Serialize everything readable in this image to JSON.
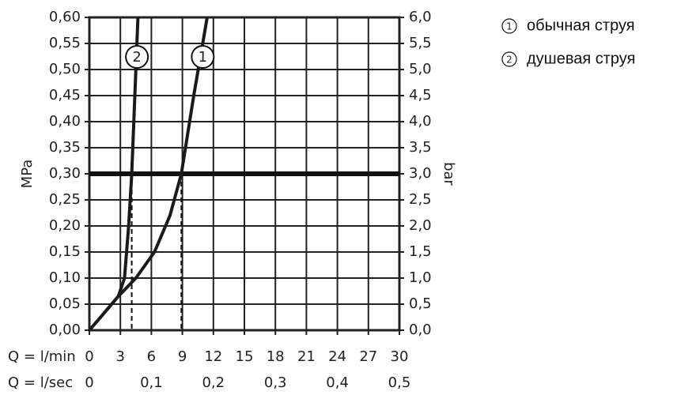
{
  "chart_data": {
    "type": "line",
    "x_label": "Q = l/min",
    "x2_label": "Q = l/sec",
    "y_label": "MPa",
    "y2_label": "bar",
    "xlim": [
      0,
      30
    ],
    "xticks": [
      0,
      3,
      6,
      9,
      12,
      15,
      18,
      21,
      24,
      27,
      30
    ],
    "x2lim": [
      0,
      0.5
    ],
    "x2ticks": [
      0,
      {
        "value": 0.1,
        "label": "0,1"
      },
      {
        "value": 0.2,
        "label": "0,2"
      },
      {
        "value": 0.3,
        "label": "0,3"
      },
      {
        "value": 0.4,
        "label": "0,4"
      },
      {
        "value": 0.5,
        "label": "0,5"
      }
    ],
    "ylim": [
      0,
      0.6
    ],
    "yticks": [
      {
        "value": 0,
        "label": "0,00"
      },
      {
        "value": 0.05,
        "label": "0,05"
      },
      {
        "value": 0.1,
        "label": "0,10"
      },
      {
        "value": 0.15,
        "label": "0,15"
      },
      {
        "value": 0.2,
        "label": "0,20"
      },
      {
        "value": 0.25,
        "label": "0,25"
      },
      {
        "value": 0.3,
        "label": "0,30"
      },
      {
        "value": 0.35,
        "label": "0,35"
      },
      {
        "value": 0.4,
        "label": "0,40"
      },
      {
        "value": 0.45,
        "label": "0,45"
      },
      {
        "value": 0.5,
        "label": "0,50"
      },
      {
        "value": 0.55,
        "label": "0,55"
      },
      {
        "value": 0.6,
        "label": "0,60"
      }
    ],
    "y2lim": [
      0,
      6
    ],
    "y2ticks": [
      {
        "value": 0,
        "label": "0,0"
      },
      {
        "value": 0.5,
        "label": "0,5"
      },
      {
        "value": 1,
        "label": "1,0"
      },
      {
        "value": 1.5,
        "label": "1,5"
      },
      {
        "value": 2,
        "label": "2,0"
      },
      {
        "value": 2.5,
        "label": "2,5"
      },
      {
        "value": 3,
        "label": "3,0"
      },
      {
        "value": 3.5,
        "label": "3,5"
      },
      {
        "value": 4,
        "label": "4,0"
      },
      {
        "value": 4.5,
        "label": "4,5"
      },
      {
        "value": 5,
        "label": "5,0"
      },
      {
        "value": 5.5,
        "label": "5,5"
      },
      {
        "value": 6,
        "label": "6,0"
      }
    ],
    "grid": true,
    "reference_line": 0.3,
    "dashed_x": [
      4.1,
      8.9
    ],
    "series": [
      {
        "name": "обычная струя",
        "marker": "1",
        "color": "#1a1a1a",
        "x": [
          0,
          1.3,
          2.8,
          4.5,
          6.3,
          7.8,
          8.9,
          10.1,
          11.4
        ],
        "values": [
          0,
          0.03,
          0.065,
          0.1,
          0.15,
          0.22,
          0.3,
          0.45,
          0.6
        ]
      },
      {
        "name": "душевая струя",
        "marker": "2",
        "color": "#1a1a1a",
        "x": [
          0,
          1.3,
          2.8,
          3.4,
          3.8,
          4.1,
          4.4,
          4.7
        ],
        "values": [
          0,
          0.03,
          0.065,
          0.1,
          0.2,
          0.3,
          0.45,
          0.6
        ]
      }
    ]
  }
}
